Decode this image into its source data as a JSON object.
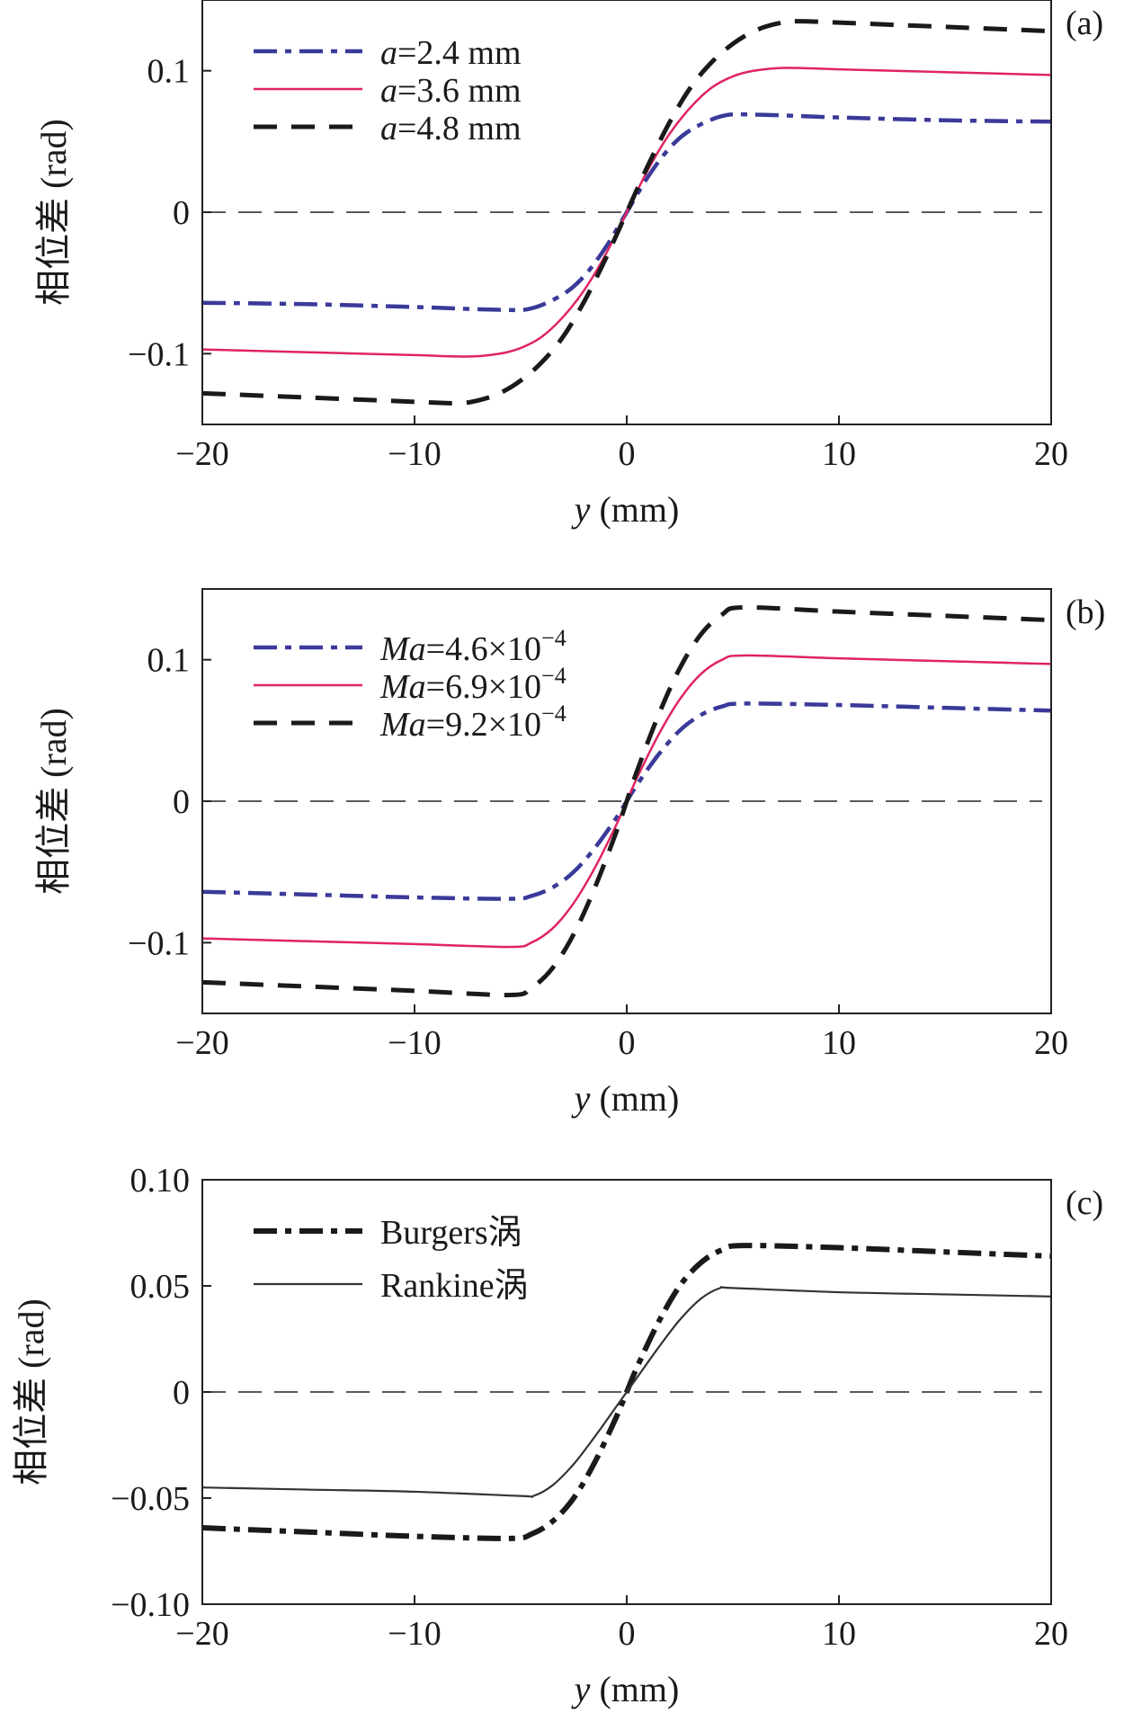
{
  "chart_data": [
    {
      "type": "line",
      "panel_label": "(a)",
      "xlabel": "y (mm)",
      "xlabel_var": "y",
      "xlabel_unit": " (mm)",
      "ylabel": "相位差 (rad)",
      "xlim": [
        -20,
        20
      ],
      "ylim": [
        -0.15,
        0.15
      ],
      "xticks": [
        -20,
        -10,
        0,
        10,
        20
      ],
      "xtick_labels": [
        "−20",
        "−10",
        "0",
        "10",
        "20"
      ],
      "yticks": [
        -0.1,
        0,
        0.1
      ],
      "ytick_labels": [
        "−0.1",
        "0",
        "0.1"
      ],
      "zero_line": true,
      "legend_position": "top-left",
      "series": [
        {
          "name": "a=2.4 mm",
          "legend_var": "a",
          "legend_rest": "=2.4 mm",
          "color": "#3a3a9a",
          "style": "dashdot",
          "x": [
            -20,
            -15,
            -10,
            -6,
            -4.5,
            -3,
            -2,
            -1,
            0,
            1,
            2,
            3,
            4.5,
            6,
            10,
            15,
            20
          ],
          "y": [
            -0.064,
            -0.065,
            -0.067,
            -0.069,
            -0.068,
            -0.058,
            -0.045,
            -0.025,
            0.0,
            0.025,
            0.045,
            0.058,
            0.068,
            0.069,
            0.067,
            0.065,
            0.064
          ]
        },
        {
          "name": "a=3.6 mm",
          "legend_var": "a",
          "legend_rest": "=3.6 mm",
          "color": "#e0245e",
          "style": "solid",
          "x": [
            -20,
            -15,
            -10,
            -7.5,
            -6,
            -5,
            -4,
            -3,
            -2,
            -1,
            0,
            1,
            2,
            3,
            4,
            5,
            6,
            7.5,
            10,
            15,
            20
          ],
          "y": [
            -0.097,
            -0.099,
            -0.101,
            -0.102,
            -0.1,
            -0.096,
            -0.088,
            -0.074,
            -0.055,
            -0.03,
            0.0,
            0.03,
            0.055,
            0.074,
            0.088,
            0.096,
            0.1,
            0.102,
            0.101,
            0.099,
            0.097
          ]
        },
        {
          "name": "a=4.8 mm",
          "legend_var": "a",
          "legend_rest": "=4.8 mm",
          "color": "#1a1a1a",
          "style": "dashed",
          "x": [
            -20,
            -15,
            -10,
            -8,
            -7,
            -6,
            -5,
            -4,
            -3,
            -2,
            -1,
            0,
            1,
            2,
            3,
            4,
            5,
            6,
            7,
            8,
            10,
            15,
            20
          ],
          "y": [
            -0.128,
            -0.131,
            -0.134,
            -0.135,
            -0.133,
            -0.128,
            -0.119,
            -0.106,
            -0.088,
            -0.063,
            -0.033,
            0.0,
            0.033,
            0.063,
            0.088,
            0.106,
            0.119,
            0.128,
            0.133,
            0.135,
            0.134,
            0.131,
            0.128
          ]
        }
      ]
    },
    {
      "type": "line",
      "panel_label": "(b)",
      "xlabel": "y (mm)",
      "xlabel_var": "y",
      "xlabel_unit": " (mm)",
      "ylabel": "相位差 (rad)",
      "xlim": [
        -20,
        20
      ],
      "ylim": [
        -0.15,
        0.15
      ],
      "xticks": [
        -20,
        -10,
        0,
        10,
        20
      ],
      "xtick_labels": [
        "−20",
        "−10",
        "0",
        "10",
        "20"
      ],
      "yticks": [
        -0.1,
        0,
        0.1
      ],
      "ytick_labels": [
        "−0.1",
        "0",
        "0.1"
      ],
      "zero_line": true,
      "legend_position": "top-left",
      "series": [
        {
          "name": "Ma=4.6×10−4",
          "legend_var": "Ma",
          "legend_rest": "=4.6×10",
          "legend_sup": "−4",
          "color": "#3a3a9a",
          "style": "dashdot",
          "x": [
            -20,
            -15,
            -10,
            -5.5,
            -4.5,
            -3.5,
            -2.5,
            -1.5,
            -0.5,
            0,
            0.5,
            1.5,
            2.5,
            3.5,
            4.5,
            5.5,
            10,
            15,
            20
          ],
          "y": [
            -0.064,
            -0.066,
            -0.068,
            -0.069,
            -0.067,
            -0.061,
            -0.05,
            -0.033,
            -0.012,
            0.0,
            0.012,
            0.033,
            0.05,
            0.061,
            0.067,
            0.069,
            0.068,
            0.066,
            0.064
          ]
        },
        {
          "name": "Ma=6.9×10−4",
          "legend_var": "Ma",
          "legend_rest": "=6.9×10",
          "legend_sup": "−4",
          "color": "#e0245e",
          "style": "solid",
          "x": [
            -20,
            -15,
            -10,
            -5.5,
            -4.5,
            -3.5,
            -2.5,
            -1.5,
            -0.5,
            0,
            0.5,
            1.5,
            2.5,
            3.5,
            4.5,
            5.5,
            10,
            15,
            20
          ],
          "y": [
            -0.097,
            -0.099,
            -0.101,
            -0.103,
            -0.1,
            -0.09,
            -0.072,
            -0.047,
            -0.017,
            0.0,
            0.017,
            0.047,
            0.072,
            0.09,
            0.1,
            0.103,
            0.101,
            0.099,
            0.097
          ]
        },
        {
          "name": "Ma=9.2×10−4",
          "legend_var": "Ma",
          "legend_rest": "=9.2×10",
          "legend_sup": "−4",
          "color": "#1a1a1a",
          "style": "dashed",
          "x": [
            -20,
            -15,
            -10,
            -5.5,
            -4.5,
            -3.5,
            -2.5,
            -1.5,
            -0.5,
            0,
            0.5,
            1.5,
            2.5,
            3.5,
            4.5,
            5.5,
            10,
            15,
            20
          ],
          "y": [
            -0.128,
            -0.131,
            -0.134,
            -0.137,
            -0.132,
            -0.118,
            -0.094,
            -0.061,
            -0.022,
            0.0,
            0.022,
            0.061,
            0.094,
            0.118,
            0.132,
            0.137,
            0.134,
            0.131,
            0.128
          ]
        }
      ]
    },
    {
      "type": "line",
      "panel_label": "(c)",
      "xlabel": "y (mm)",
      "xlabel_var": "y",
      "xlabel_unit": " (mm)",
      "ylabel": "相位差 (rad)",
      "xlim": [
        -20,
        20
      ],
      "ylim": [
        -0.1,
        0.1
      ],
      "xticks": [
        -20,
        -10,
        0,
        10,
        20
      ],
      "xtick_labels": [
        "−20",
        "−10",
        "0",
        "10",
        "20"
      ],
      "yticks": [
        -0.1,
        -0.05,
        0,
        0.05,
        0.1
      ],
      "ytick_labels": [
        "−0.10",
        "−0.05",
        "0",
        "0.05",
        "0.10"
      ],
      "zero_line": true,
      "legend_position": "top-left",
      "series": [
        {
          "name": "Burgers涡",
          "legend_var": "",
          "legend_rest": "Burgers涡",
          "color": "#1a1a1a",
          "style": "dashdot-bold",
          "x": [
            -20,
            -15,
            -10,
            -5.5,
            -4.5,
            -3.5,
            -2.5,
            -1.5,
            -0.5,
            0,
            0.5,
            1.5,
            2.5,
            3.5,
            4.5,
            5.5,
            10,
            15,
            20
          ],
          "y": [
            -0.064,
            -0.066,
            -0.068,
            -0.069,
            -0.067,
            -0.061,
            -0.05,
            -0.033,
            -0.012,
            0.0,
            0.012,
            0.033,
            0.05,
            0.061,
            0.067,
            0.069,
            0.068,
            0.066,
            0.064
          ]
        },
        {
          "name": "Rankine涡",
          "legend_var": "",
          "legend_rest": "Rankine涡",
          "color": "#333333",
          "style": "solid-thin",
          "x": [
            -20,
            -15,
            -10,
            -5,
            -4.4,
            -3.5,
            -2.5,
            -1.5,
            -0.5,
            0,
            0.5,
            1.5,
            2.5,
            3.5,
            4.4,
            5,
            10,
            15,
            20
          ],
          "y": [
            -0.045,
            -0.046,
            -0.047,
            -0.049,
            -0.049,
            -0.044,
            -0.034,
            -0.021,
            -0.007,
            0.0,
            0.007,
            0.021,
            0.034,
            0.044,
            0.049,
            0.049,
            0.047,
            0.046,
            0.045
          ]
        }
      ]
    }
  ]
}
